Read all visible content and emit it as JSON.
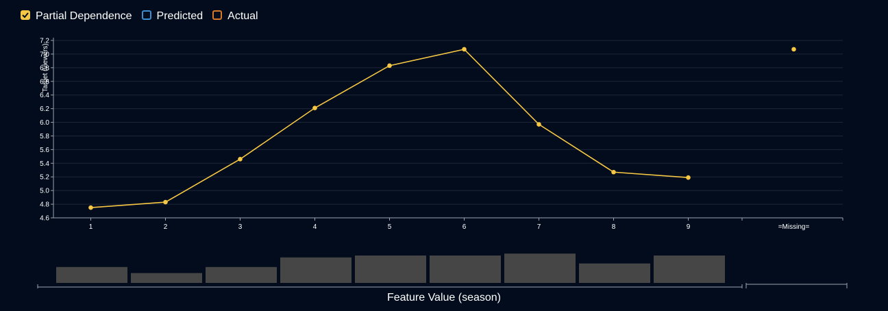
{
  "legend": {
    "items": [
      {
        "label": "Partial Dependence",
        "checked": true,
        "color": "#f6c744"
      },
      {
        "label": "Predicted",
        "checked": false,
        "color": "#3d8fd1"
      },
      {
        "label": "Actual",
        "checked": false,
        "color": "#d97a2b"
      }
    ]
  },
  "chart_data": {
    "type": "line",
    "title": "",
    "xlabel": "Feature Value (season)",
    "ylabel": "Target (viewers)",
    "ylim": [
      4.6,
      7.2
    ],
    "yticks": [
      "4.6",
      "4.8",
      "5.0",
      "5.2",
      "5.4",
      "5.6",
      "5.8",
      "6.0",
      "6.2",
      "6.4",
      "6.6",
      "6.8",
      "7.0",
      "7.2"
    ],
    "categories": [
      "1",
      "2",
      "3",
      "4",
      "5",
      "6",
      "7",
      "8",
      "9"
    ],
    "series": [
      {
        "name": "Partial Dependence",
        "color": "#f6c744",
        "values": [
          4.75,
          4.83,
          5.46,
          6.21,
          6.83,
          7.07,
          5.97,
          5.27,
          5.19
        ]
      }
    ],
    "missing": {
      "label": "=Missing=",
      "value": 7.07
    },
    "histogram": {
      "values": [
        0.58,
        0.36,
        0.58,
        0.93,
        1.0,
        1.0,
        1.07,
        0.71,
        1.0
      ],
      "color": "#464646"
    },
    "grid": true
  }
}
